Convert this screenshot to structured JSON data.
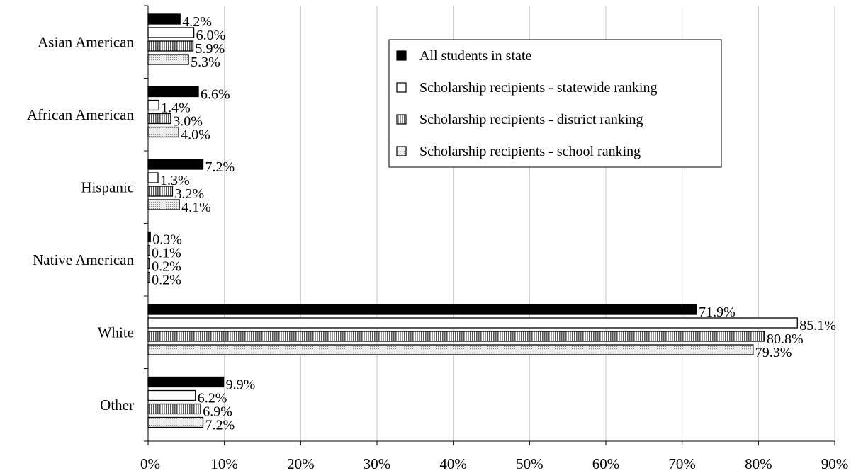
{
  "chart_data": {
    "type": "bar",
    "orientation": "horizontal",
    "categories": [
      "Asian American",
      "African American",
      "Hispanic",
      "Native American",
      "White",
      "Other"
    ],
    "series": [
      {
        "name": "All students in state",
        "values": [
          4.2,
          6.6,
          7.2,
          0.3,
          71.9,
          9.9
        ],
        "labels": [
          "4.2%",
          "6.6%",
          "7.2%",
          "0.3%",
          "71.9%",
          "9.9%"
        ],
        "fill": "#000000",
        "pattern": "solid"
      },
      {
        "name": "Scholarship recipients - statewide ranking",
        "values": [
          6.0,
          1.4,
          1.3,
          0.1,
          85.1,
          6.2
        ],
        "labels": [
          "6.0%",
          "1.4%",
          "1.3%",
          "0.1%",
          "85.1%",
          "6.2%"
        ],
        "fill": "#ffffff",
        "pattern": "none"
      },
      {
        "name": "Scholarship recipients - district ranking",
        "values": [
          5.9,
          3.0,
          3.2,
          0.2,
          80.8,
          6.9
        ],
        "labels": [
          "5.9%",
          "3.0%",
          "3.2%",
          "0.2%",
          "80.8%",
          "6.9%"
        ],
        "fill": "#a0a0a0",
        "pattern": "vertical-stripes"
      },
      {
        "name": "Scholarship recipients - school ranking",
        "values": [
          5.3,
          4.0,
          4.1,
          0.2,
          79.3,
          7.2
        ],
        "labels": [
          "5.3%",
          "4.0%",
          "4.1%",
          "0.2%",
          "79.3%",
          "7.2%"
        ],
        "fill": "#e0e0e0",
        "pattern": "dots"
      }
    ],
    "x_ticks": [
      "0%",
      "10%",
      "20%",
      "30%",
      "40%",
      "50%",
      "60%",
      "70%",
      "80%",
      "90%"
    ],
    "xlim": [
      0,
      90
    ],
    "title": "",
    "xlabel": "",
    "ylabel": "",
    "grid": "vertical",
    "legend_position": "top-right"
  }
}
